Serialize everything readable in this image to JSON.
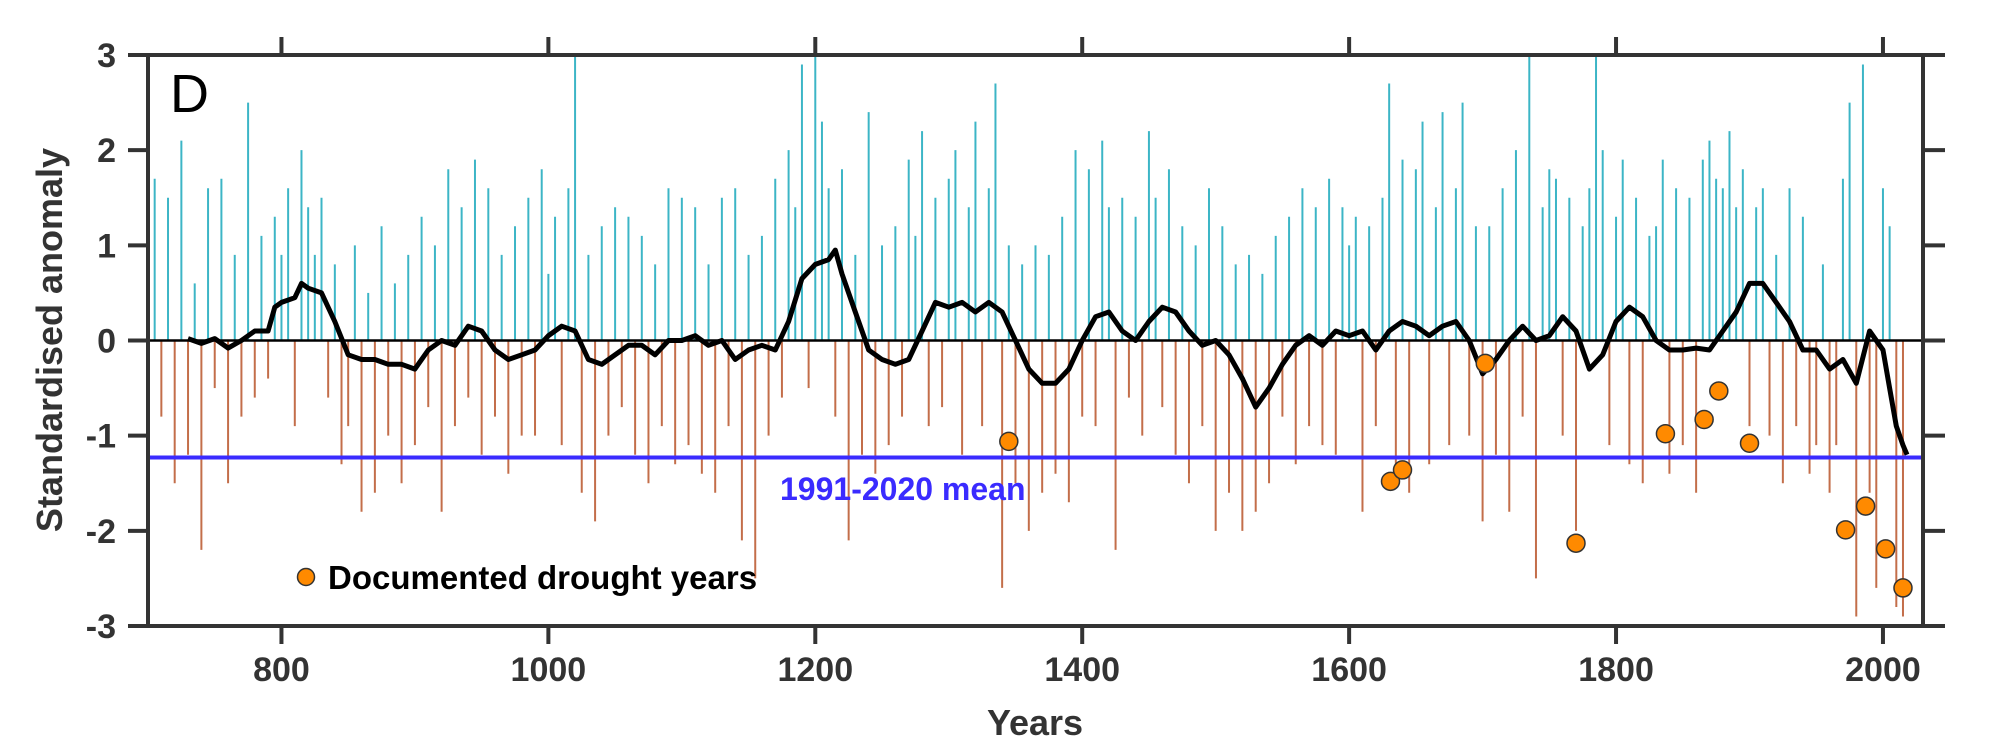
{
  "chart_data": {
    "type": "bar",
    "panel_label": "D",
    "xlabel": "Years",
    "ylabel": "Standardised anomaly",
    "xlim": [
      700,
      2030
    ],
    "ylim": [
      -3,
      3
    ],
    "x_ticks": [
      800,
      1000,
      1200,
      1400,
      1600,
      1800,
      2000
    ],
    "y_ticks": [
      -3,
      -2,
      -1,
      0,
      1,
      2,
      3
    ],
    "grid": false,
    "colors": {
      "positive": "#1ba9bd",
      "negative": "#b9552b",
      "smooth": "#000000",
      "mean_line": "#3a2bff",
      "drought": "#ff8a00"
    },
    "annual_anomaly": {
      "note_sampling_years": [
        705,
        5
      ],
      "values": [
        1.7,
        -0.8,
        1.5,
        -1.5,
        2.1,
        -1.2,
        0.6,
        -2.2,
        1.6,
        -0.5,
        1.7,
        -1.5,
        0.9,
        -0.8,
        2.5,
        -0.6,
        1.1,
        -0.4,
        1.3,
        0.9,
        1.6,
        -0.9,
        2.0,
        1.4,
        0.9,
        1.5,
        -0.6,
        0.8,
        -1.3,
        -0.9,
        1.0,
        -1.8,
        0.5,
        -1.6,
        1.2,
        -1.0,
        0.6,
        -1.5,
        0.9,
        -1.1,
        1.3,
        -0.7,
        1.0,
        -1.8,
        1.8,
        -0.9,
        1.4,
        -0.6,
        1.9,
        -1.2,
        1.6,
        -0.8,
        0.9,
        -1.4,
        1.2,
        -1.0,
        1.5,
        -1.0,
        1.8,
        0.7,
        1.3,
        -1.1,
        1.6,
        3.0,
        -1.6,
        0.9,
        -1.9,
        1.2,
        -1.0,
        1.4,
        -0.7,
        1.3,
        -1.2,
        1.1,
        -1.5,
        0.8,
        -0.9,
        1.6,
        -1.3,
        1.5,
        -1.1,
        1.4,
        -1.4,
        0.8,
        -1.6,
        1.5,
        -0.9,
        1.6,
        -2.1,
        0.9,
        -2.5,
        1.1,
        -1.0,
        1.7,
        -0.6,
        2.0,
        1.4,
        2.9,
        -0.5,
        3.0,
        2.3,
        1.6,
        -0.8,
        1.8,
        -2.1,
        0.9,
        -1.2,
        2.4,
        -1.4,
        1.0,
        -1.1,
        1.2,
        -0.8,
        1.9,
        1.1,
        2.2,
        -0.9,
        1.5,
        -0.7,
        1.7,
        2.0,
        -1.2,
        1.4,
        2.3,
        -0.9,
        1.6,
        2.7,
        -2.6,
        1.0,
        -1.5,
        0.8,
        -2.0,
        1.0,
        -1.6,
        0.9,
        -1.4,
        1.3,
        -1.7,
        2.0,
        -0.8,
        1.8,
        -0.9,
        2.1,
        1.4,
        -2.2,
        1.5,
        -0.6,
        1.3,
        -1.0,
        2.2,
        1.5,
        -0.7,
        1.8,
        -1.2,
        1.2,
        -1.5,
        1.0,
        -0.9,
        1.6,
        -2.0,
        1.2,
        -1.6,
        0.8,
        -2.0,
        0.9,
        -1.8,
        0.7,
        -1.5,
        1.1,
        -0.8,
        1.3,
        -1.3,
        1.6,
        -0.9,
        1.4,
        -1.1,
        1.7,
        -1.2,
        1.4,
        1.0,
        1.3,
        -1.8,
        1.2,
        -0.9,
        1.5,
        2.7,
        -1.5,
        1.9,
        -1.6,
        1.8,
        2.3,
        -1.3,
        1.4,
        2.4,
        -1.1,
        1.6,
        2.5,
        -1.0,
        1.2,
        -1.9,
        1.2,
        -1.2,
        1.6,
        -1.8,
        2.0,
        -0.8,
        3.0,
        -2.5,
        1.4,
        1.8,
        1.7,
        -1.0,
        1.5,
        -2.0,
        1.2,
        1.6,
        3.0,
        2.0,
        -1.1,
        1.3,
        1.9,
        -1.3,
        1.5,
        -1.5,
        1.1,
        1.2,
        1.9,
        -1.4,
        1.6,
        -1.1,
        1.5,
        -1.6,
        1.9,
        2.1,
        1.7,
        1.6,
        2.2,
        1.4,
        1.8,
        -0.9,
        1.4,
        1.6,
        -1.0,
        0.9,
        -1.5,
        1.6,
        -0.9,
        1.3,
        -1.4,
        -1.1,
        0.8,
        -1.6,
        -1.1,
        1.7,
        2.5,
        -2.9,
        2.9,
        -1.6,
        -2.6,
        1.6,
        1.2,
        -2.8,
        -2.9
      ]
    },
    "smoothed": {
      "x": [
        730,
        740,
        750,
        760,
        770,
        780,
        790,
        795,
        800,
        810,
        815,
        820,
        830,
        840,
        850,
        860,
        870,
        880,
        890,
        900,
        910,
        920,
        930,
        940,
        950,
        960,
        970,
        980,
        990,
        1000,
        1010,
        1020,
        1030,
        1040,
        1050,
        1060,
        1070,
        1080,
        1090,
        1100,
        1110,
        1120,
        1130,
        1140,
        1150,
        1160,
        1170,
        1180,
        1190,
        1200,
        1210,
        1215,
        1220,
        1230,
        1240,
        1250,
        1260,
        1270,
        1280,
        1290,
        1300,
        1310,
        1320,
        1330,
        1340,
        1350,
        1360,
        1370,
        1380,
        1390,
        1400,
        1410,
        1420,
        1430,
        1440,
        1450,
        1460,
        1470,
        1480,
        1490,
        1500,
        1510,
        1520,
        1530,
        1540,
        1550,
        1560,
        1570,
        1580,
        1590,
        1600,
        1610,
        1620,
        1630,
        1640,
        1650,
        1660,
        1670,
        1680,
        1690,
        1700,
        1710,
        1720,
        1730,
        1740,
        1750,
        1760,
        1770,
        1780,
        1790,
        1800,
        1810,
        1820,
        1830,
        1840,
        1850,
        1860,
        1870,
        1880,
        1890,
        1900,
        1910,
        1920,
        1930,
        1940,
        1950,
        1960,
        1970,
        1980,
        1990,
        2000,
        2005,
        2010,
        2015,
        2018
      ],
      "y": [
        0.02,
        -0.03,
        0.02,
        -0.08,
        0.0,
        0.1,
        0.1,
        0.35,
        0.4,
        0.45,
        0.6,
        0.55,
        0.5,
        0.2,
        -0.15,
        -0.2,
        -0.2,
        -0.25,
        -0.25,
        -0.3,
        -0.1,
        0.0,
        -0.05,
        0.15,
        0.1,
        -0.1,
        -0.2,
        -0.15,
        -0.1,
        0.05,
        0.15,
        0.1,
        -0.2,
        -0.25,
        -0.15,
        -0.05,
        -0.05,
        -0.15,
        0.0,
        0.0,
        0.05,
        -0.05,
        0.0,
        -0.2,
        -0.1,
        -0.05,
        -0.1,
        0.2,
        0.65,
        0.8,
        0.85,
        0.95,
        0.7,
        0.3,
        -0.1,
        -0.2,
        -0.25,
        -0.2,
        0.1,
        0.4,
        0.35,
        0.4,
        0.3,
        0.4,
        0.3,
        0.0,
        -0.3,
        -0.45,
        -0.45,
        -0.3,
        0.0,
        0.25,
        0.3,
        0.1,
        0.0,
        0.2,
        0.35,
        0.3,
        0.1,
        -0.05,
        0.0,
        -0.15,
        -0.4,
        -0.7,
        -0.5,
        -0.25,
        -0.05,
        0.05,
        -0.05,
        0.1,
        0.05,
        0.1,
        -0.1,
        0.1,
        0.2,
        0.15,
        0.05,
        0.15,
        0.2,
        0.0,
        -0.35,
        -0.2,
        0.0,
        0.15,
        0.0,
        0.05,
        0.25,
        0.1,
        -0.3,
        -0.15,
        0.2,
        0.35,
        0.25,
        0.0,
        -0.1,
        -0.1,
        -0.08,
        -0.1,
        0.1,
        0.3,
        0.6,
        0.6,
        0.4,
        0.2,
        -0.1,
        -0.1,
        -0.3,
        -0.2,
        -0.45,
        0.1,
        -0.1,
        -0.5,
        -0.9,
        -1.1,
        -1.2
      ]
    },
    "mean_line": {
      "label": "1991-2020 mean",
      "value": -1.23
    },
    "drought_years": {
      "legend_label": "Documented drought years",
      "x": [
        1345,
        1631,
        1640,
        1702,
        1770,
        1837,
        1866,
        1877,
        1900,
        1972,
        1987,
        2002,
        2015
      ],
      "y": [
        -1.06,
        -1.48,
        -1.36,
        -0.24,
        -2.13,
        -0.98,
        -0.83,
        -0.53,
        -1.08,
        -1.99,
        -1.74,
        -2.19,
        -2.6
      ]
    }
  }
}
